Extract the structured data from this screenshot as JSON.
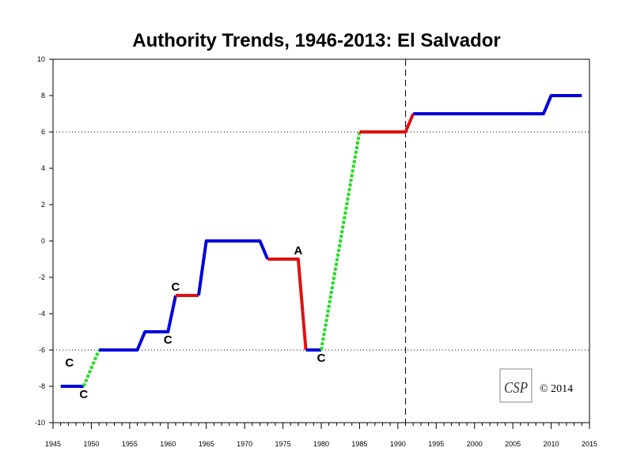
{
  "chart_data": {
    "type": "line",
    "title": "Authority Trends, 1946-2013: El Salvador",
    "xlabel": "",
    "ylabel": "",
    "xlim": [
      1945,
      2015
    ],
    "ylim": [
      -10,
      10
    ],
    "x_ticks": [
      1945,
      1950,
      1955,
      1960,
      1965,
      1970,
      1975,
      1980,
      1985,
      1990,
      1995,
      2000,
      2005,
      2010,
      2015
    ],
    "y_ticks": [
      -10,
      -8,
      -6,
      -4,
      -2,
      0,
      2,
      4,
      6,
      8,
      10
    ],
    "grid": false,
    "reference_lines": {
      "horizontal": [
        6,
        -6
      ],
      "vertical": [
        1991
      ]
    },
    "segments": [
      {
        "style": "stable",
        "color": "#0000dd",
        "points": [
          [
            1946,
            -8
          ],
          [
            1949,
            -8
          ]
        ]
      },
      {
        "style": "transition",
        "color": "#22dd22",
        "points": [
          [
            1949,
            -8
          ],
          [
            1951,
            -6
          ]
        ]
      },
      {
        "style": "stable",
        "color": "#0000dd",
        "points": [
          [
            1951,
            -6
          ],
          [
            1956,
            -6
          ],
          [
            1957,
            -5
          ],
          [
            1960,
            -5
          ],
          [
            1961,
            -3
          ]
        ]
      },
      {
        "style": "unstable",
        "color": "#e01010",
        "points": [
          [
            1961,
            -3
          ],
          [
            1964,
            -3
          ]
        ]
      },
      {
        "style": "stable",
        "color": "#0000dd",
        "points": [
          [
            1964,
            -3
          ],
          [
            1965,
            0
          ],
          [
            1972,
            0
          ],
          [
            1973,
            -1
          ]
        ]
      },
      {
        "style": "unstable",
        "color": "#e01010",
        "points": [
          [
            1973,
            -1
          ],
          [
            1977,
            -1
          ],
          [
            1978,
            -6
          ]
        ]
      },
      {
        "style": "stable",
        "color": "#0000dd",
        "points": [
          [
            1978,
            -6
          ],
          [
            1980,
            -6
          ]
        ]
      },
      {
        "style": "transition",
        "color": "#22dd22",
        "points": [
          [
            1980,
            -6
          ],
          [
            1985,
            6
          ]
        ]
      },
      {
        "style": "unstable",
        "color": "#e01010",
        "points": [
          [
            1985,
            6
          ],
          [
            1991,
            6
          ],
          [
            1992,
            7
          ]
        ]
      },
      {
        "style": "stable",
        "color": "#0000dd",
        "points": [
          [
            1992,
            7
          ],
          [
            2009,
            7
          ],
          [
            2010,
            8
          ],
          [
            2014,
            8
          ]
        ]
      }
    ],
    "annotations": [
      {
        "text": "C",
        "x": 1949,
        "y": -8,
        "position": "below"
      },
      {
        "text": "C",
        "x": 1949,
        "y": -6.7,
        "position": "left"
      },
      {
        "text": "C",
        "x": 1960,
        "y": -5,
        "position": "below"
      },
      {
        "text": "C",
        "x": 1961,
        "y": -3,
        "position": "above"
      },
      {
        "text": "A",
        "x": 1977,
        "y": -1,
        "position": "above"
      },
      {
        "text": "C",
        "x": 1980,
        "y": -6,
        "position": "below"
      }
    ]
  },
  "copyright": "© 2014",
  "logo": {
    "text": "CSP"
  }
}
